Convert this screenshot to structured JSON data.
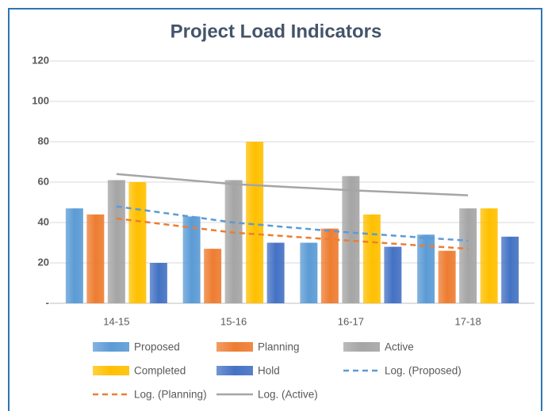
{
  "chart_data": {
    "type": "bar",
    "title": "Project Load Indicators",
    "categories": [
      "14-15",
      "15-16",
      "16-17",
      "17-18"
    ],
    "series": [
      {
        "name": "Proposed",
        "type": "bar",
        "color": "#5b9bd5",
        "values": [
          47,
          43,
          30,
          34
        ]
      },
      {
        "name": "Planning",
        "type": "bar",
        "color": "#ed7d31",
        "values": [
          44,
          27,
          37,
          26
        ]
      },
      {
        "name": "Active",
        "type": "bar",
        "color": "#a5a5a5",
        "values": [
          61,
          61,
          63,
          47
        ]
      },
      {
        "name": "Completed",
        "type": "bar",
        "color": "#ffc000",
        "values": [
          60,
          80,
          44,
          47
        ]
      },
      {
        "name": "Hold",
        "type": "bar",
        "color": "#4472c4",
        "values": [
          20,
          30,
          28,
          33
        ]
      },
      {
        "name": "Log. (Proposed)",
        "type": "line",
        "line_style": "dashed",
        "color": "#5b9bd5",
        "values": [
          48,
          40,
          35,
          31
        ]
      },
      {
        "name": "Log. (Planning)",
        "type": "line",
        "line_style": "dashed",
        "color": "#ed7d31",
        "values": [
          42,
          35,
          31,
          27
        ]
      },
      {
        "name": "Log. (Active)",
        "type": "line",
        "line_style": "solid",
        "color": "#a5a5a5",
        "values": [
          64,
          59,
          56,
          53.5
        ]
      }
    ],
    "ylim": [
      0,
      120
    ],
    "yticks": [
      {
        "value": 0,
        "label": "-"
      },
      20,
      40,
      60,
      80,
      100,
      120
    ],
    "grid": true,
    "legend": "bottom"
  }
}
